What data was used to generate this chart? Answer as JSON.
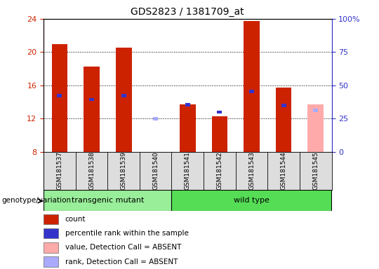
{
  "title": "GDS2823 / 1381709_at",
  "samples": [
    "GSM181537",
    "GSM181538",
    "GSM181539",
    "GSM181540",
    "GSM181541",
    "GSM181542",
    "GSM181543",
    "GSM181544",
    "GSM181545"
  ],
  "count_values": [
    21.0,
    18.3,
    20.5,
    7.8,
    13.7,
    12.3,
    23.7,
    15.7,
    null
  ],
  "rank_values": [
    14.8,
    14.3,
    14.8,
    null,
    13.7,
    12.8,
    15.3,
    13.6,
    null
  ],
  "absent_count_values": [
    null,
    null,
    null,
    null,
    null,
    null,
    null,
    null,
    13.7
  ],
  "absent_rank_values": [
    null,
    null,
    null,
    12.0,
    null,
    null,
    null,
    null,
    13.0
  ],
  "ylim": [
    8,
    24
  ],
  "yticks": [
    8,
    12,
    16,
    20,
    24
  ],
  "right_yticks_vals": [
    8,
    12,
    16,
    20,
    24
  ],
  "right_ytick_labels": [
    "0",
    "25",
    "50",
    "75",
    "100%"
  ],
  "color_count": "#cc2200",
  "color_rank": "#3333cc",
  "color_absent_count": "#ffaaaa",
  "color_absent_rank": "#aaaaff",
  "color_transgenic": "#99ee99",
  "color_wildtype": "#55dd55",
  "transgenic_indices": [
    0,
    1,
    2,
    3
  ],
  "wildtype_indices": [
    4,
    5,
    6,
    7,
    8
  ],
  "group_label_text_transgenic": "transgenic mutant",
  "group_label_text_wildtype": "wild type",
  "genotype_label": "genotype/variation",
  "legend_items": [
    {
      "color": "#cc2200",
      "label": "count"
    },
    {
      "color": "#3333cc",
      "label": "percentile rank within the sample"
    },
    {
      "color": "#ffaaaa",
      "label": "value, Detection Call = ABSENT"
    },
    {
      "color": "#aaaaff",
      "label": "rank, Detection Call = ABSENT"
    }
  ]
}
